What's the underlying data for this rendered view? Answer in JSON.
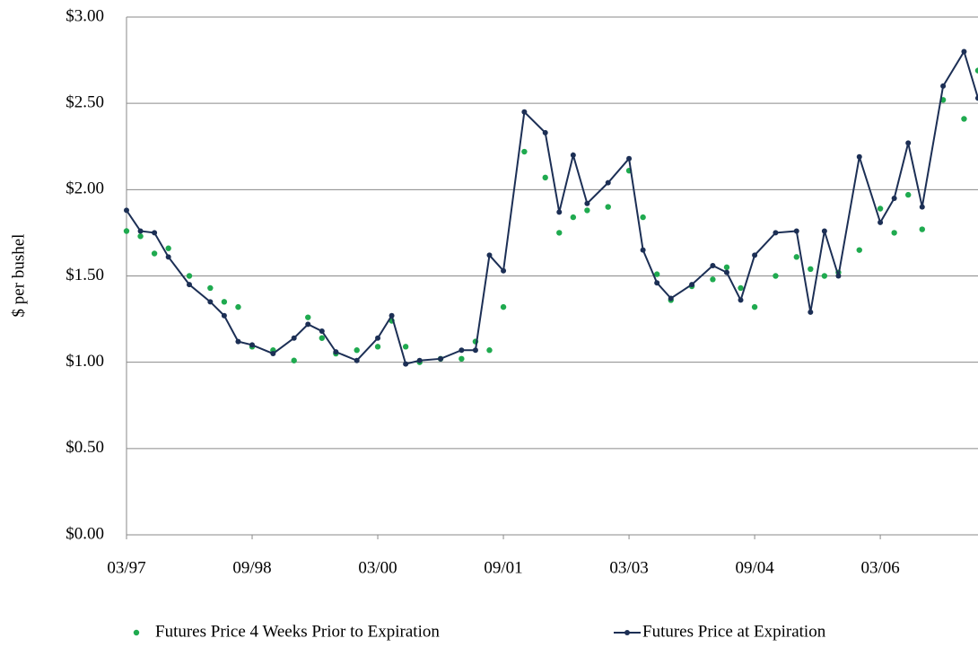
{
  "chart_data": {
    "type": "line",
    "ylabel": "$ per bushel",
    "x": [
      "03/97",
      "05/97",
      "07/97",
      "09/97",
      "12/97",
      "03/98",
      "05/98",
      "07/98",
      "09/98",
      "12/98",
      "03/99",
      "05/99",
      "07/99",
      "09/99",
      "12/99",
      "03/00",
      "05/00",
      "07/00",
      "09/00",
      "12/00",
      "03/01",
      "05/01",
      "07/01",
      "09/01",
      "12/01",
      "03/02",
      "05/02",
      "07/02",
      "09/02",
      "12/02",
      "03/03",
      "05/03",
      "07/03",
      "09/03",
      "12/03",
      "03/04",
      "05/04",
      "07/04",
      "09/04",
      "12/04",
      "03/05",
      "05/05",
      "07/05",
      "09/05",
      "12/05",
      "03/06",
      "05/06",
      "07/06",
      "09/06",
      "12/06",
      "03/07",
      "05/07"
    ],
    "series": [
      {
        "name": "Futures Price 4 Weeks Prior to Expiration",
        "color": "#1faa4f",
        "style": "markers",
        "values": [
          1.76,
          1.73,
          1.63,
          1.66,
          1.5,
          1.43,
          1.35,
          1.32,
          1.09,
          1.07,
          1.01,
          1.26,
          1.14,
          1.05,
          1.07,
          1.09,
          1.24,
          1.09,
          1.0,
          1.02,
          1.02,
          1.12,
          1.07,
          1.32,
          2.22,
          2.07,
          1.75,
          1.84,
          1.88,
          1.9,
          2.11,
          1.84,
          1.51,
          1.36,
          1.44,
          1.48,
          1.55,
          1.43,
          1.32,
          1.5,
          1.61,
          1.54,
          1.5,
          1.52,
          1.65,
          1.89,
          1.75,
          1.97,
          1.77,
          2.52,
          2.41,
          2.69
        ]
      },
      {
        "name": "Futures Price at Expiration",
        "color": "#1c2f55",
        "style": "line-markers",
        "values": [
          1.88,
          1.76,
          1.75,
          1.61,
          1.45,
          1.35,
          1.27,
          1.12,
          1.1,
          1.05,
          1.14,
          1.22,
          1.18,
          1.06,
          1.01,
          1.14,
          1.27,
          0.99,
          1.01,
          1.02,
          1.07,
          1.07,
          1.62,
          1.53,
          2.45,
          2.33,
          1.87,
          2.2,
          1.92,
          2.04,
          2.18,
          1.65,
          1.46,
          1.37,
          1.45,
          1.56,
          1.52,
          1.36,
          1.62,
          1.75,
          1.76,
          1.29,
          1.76,
          1.5,
          2.19,
          1.81,
          1.95,
          2.27,
          1.9,
          2.6,
          2.8,
          2.53
        ]
      }
    ],
    "xlim": [
      "03/97",
      "05/07"
    ],
    "xticks": [
      "03/97",
      "09/98",
      "03/00",
      "09/01",
      "03/03",
      "09/04",
      "03/06"
    ],
    "ylim": [
      0,
      3
    ],
    "yticks": [
      {
        "value": 0,
        "label": "$0.00"
      },
      {
        "value": 0.5,
        "label": "$0.50"
      },
      {
        "value": 1,
        "label": "$1.00"
      },
      {
        "value": 1.5,
        "label": "$1.50"
      },
      {
        "value": 2,
        "label": "$2.00"
      },
      {
        "value": 2.5,
        "label": "$2.50"
      },
      {
        "value": 3,
        "label": "$3.00"
      }
    ],
    "grid": true,
    "legend": "bottom"
  }
}
